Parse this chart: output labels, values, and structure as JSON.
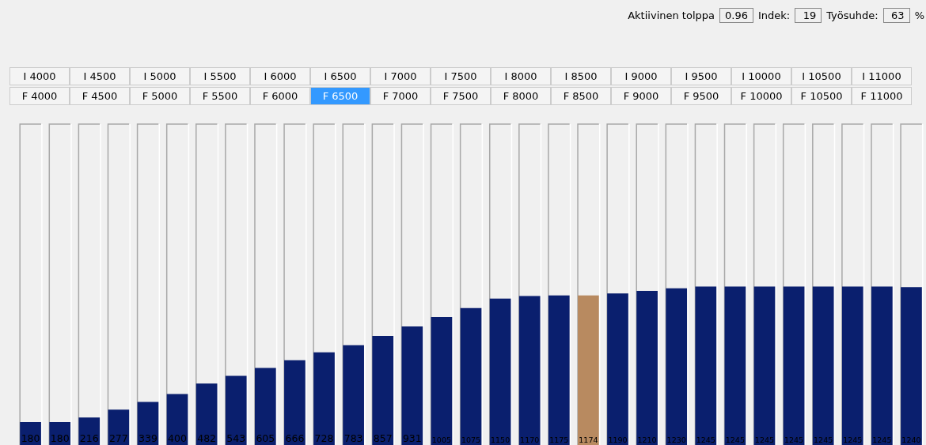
{
  "chart_data": {
    "type": "bar",
    "ylim": [
      0,
      2520
    ],
    "categories": [
      null,
      null,
      null,
      null,
      null,
      null,
      null,
      null,
      null,
      null,
      null,
      null,
      null,
      null,
      null,
      null,
      null,
      null,
      null,
      null,
      null,
      null,
      null,
      null,
      null,
      null,
      null,
      null,
      null,
      null,
      null
    ],
    "values": [
      180,
      180,
      216,
      277,
      339,
      400,
      482,
      543,
      605,
      666,
      728,
      783,
      857,
      931,
      1005,
      1075,
      1150,
      1170,
      1175,
      1174,
      1190,
      1210,
      1230,
      1245,
      1245,
      1245,
      1245,
      1245,
      1245,
      1245,
      1240
    ],
    "colors": [
      "#0a1f6e",
      "#0a1f6e",
      "#0a1f6e",
      "#0a1f6e",
      "#0a1f6e",
      "#0a1f6e",
      "#0a1f6e",
      "#0a1f6e",
      "#0a1f6e",
      "#0a1f6e",
      "#0a1f6e",
      "#0a1f6e",
      "#0a1f6e",
      "#0a1f6e",
      "#0a1f6e",
      "#0a1f6e",
      "#0a1f6e",
      "#0a1f6e",
      "#0a1f6e",
      "#b88a60",
      "#0a1f6e",
      "#0a1f6e",
      "#0a1f6e",
      "#0a1f6e",
      "#0a1f6e",
      "#0a1f6e",
      "#0a1f6e",
      "#0a1f6e",
      "#0a1f6e",
      "#0a1f6e",
      "#0a1f6e"
    ],
    "data_labels": true,
    "legend": false,
    "tick_labels": false,
    "annotations": [
      "Aktiivinen tolppa",
      "0.96",
      "Indek:",
      "19",
      "Työsuhde:",
      "63",
      "%",
      "I 4000",
      "I 4500",
      "I 5000",
      "I 5500",
      "I 6000",
      "I 6500",
      "I 7000",
      "I 7500",
      "I 8000",
      "I 8500",
      "I 9000",
      "I 9500",
      "I 10000",
      "I 10500",
      "I 11000",
      "F 4000",
      "F 4500",
      "F 5000",
      "F 5500",
      "F 6000",
      "F 6500",
      "F 7000",
      "F 7500",
      "F 8000",
      "F 8500",
      "F 9000",
      "F 9500",
      "F 10000",
      "F 10500",
      "F 11000"
    ]
  }
}
